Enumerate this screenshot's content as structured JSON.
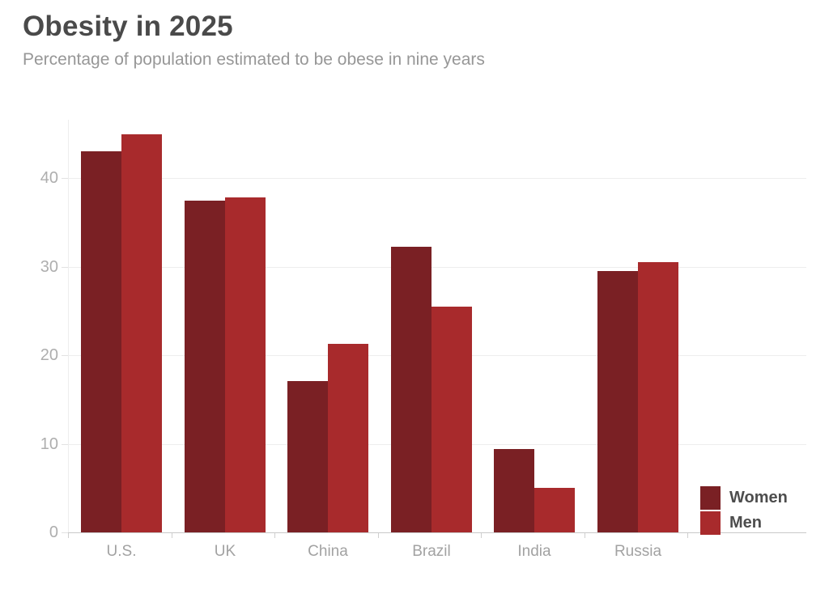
{
  "chart_data": {
    "type": "bar",
    "title": "Obesity in 2025",
    "subtitle": "Percentage of population estimated to be obese in nine years",
    "categories": [
      "U.S.",
      "UK",
      "China",
      "Brazil",
      "India",
      "Russia"
    ],
    "series": [
      {
        "name": "Women",
        "color": "#7a2024",
        "values": [
          43,
          37.5,
          17.1,
          32.3,
          9.4,
          29.5
        ]
      },
      {
        "name": "Men",
        "color": "#a82a2c",
        "values": [
          45,
          37.8,
          21.3,
          25.5,
          5,
          30.5
        ]
      }
    ],
    "y_ticks": [
      40,
      30,
      20,
      10,
      0
    ],
    "ylim": [
      0,
      46.6
    ],
    "xlabel": "",
    "ylabel": "",
    "grid": true,
    "legend_position": "bottom-right",
    "text_colors": {
      "title": "#4a4a4a",
      "subtitle": "#979797",
      "axis_labels": "#a2a2a2",
      "legend_labels": "#4d4d4d"
    }
  }
}
